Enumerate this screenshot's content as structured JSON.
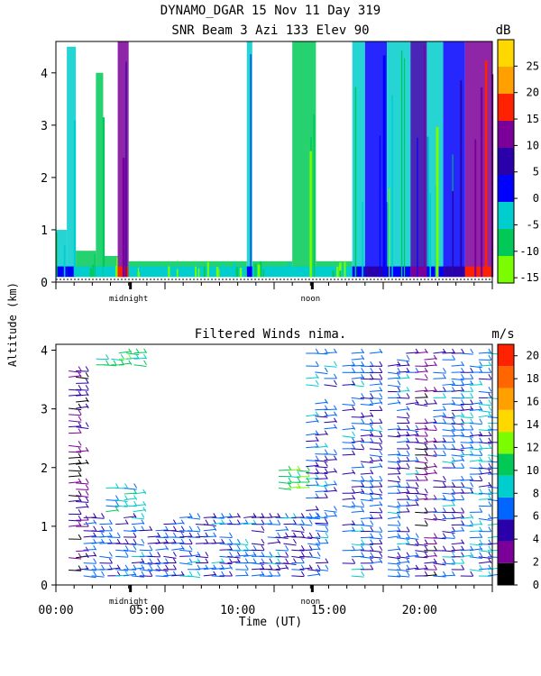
{
  "title_line1": "DYNAMO_DGAR  15 Nov 11 Day 319",
  "title_line2": "SNR Beam 3 Azi 133 Elev 90",
  "ylabel": "Altitude (km)",
  "xlabel": "Time (UT)",
  "chart_data": [
    {
      "type": "heatmap",
      "title": "SNR Beam 3 Azi 133 Elev 90",
      "ylim": [
        0,
        4.6
      ],
      "xlim": [
        0,
        24
      ],
      "yticks": [
        0,
        1,
        2,
        3,
        4
      ],
      "colorbar": {
        "unit": "dB",
        "ticks": [
          -15,
          -10,
          -5,
          0,
          5,
          10,
          15,
          20,
          25
        ],
        "range": [
          -16,
          30
        ],
        "colors": [
          "#7CFC00",
          "#00C957",
          "#00CDCD",
          "#0000FF",
          "#2A00AA",
          "#7B0099",
          "#FF2200",
          "#FFA000",
          "#FFD800"
        ]
      },
      "x_markers": [
        "midnight",
        "noon"
      ],
      "columns": [
        {
          "x0": 0.0,
          "x1": 0.6,
          "top": 1.0,
          "level": -5
        },
        {
          "x0": 0.6,
          "x1": 1.1,
          "top": 4.5,
          "level": -5
        },
        {
          "x0": 1.1,
          "x1": 2.2,
          "top": 0.6,
          "level": -10
        },
        {
          "x0": 2.2,
          "x1": 2.6,
          "top": 4.0,
          "level": -10
        },
        {
          "x0": 2.6,
          "x1": 3.4,
          "top": 0.5,
          "level": -10
        },
        {
          "x0": 3.4,
          "x1": 4.0,
          "top": 4.6,
          "level": 10
        },
        {
          "x0": 4.0,
          "x1": 10.5,
          "top": 0.4,
          "level": -10
        },
        {
          "x0": 10.5,
          "x1": 10.8,
          "top": 4.6,
          "level": -5
        },
        {
          "x0": 10.8,
          "x1": 13.0,
          "top": 0.4,
          "level": -10
        },
        {
          "x0": 13.0,
          "x1": 14.3,
          "top": 4.6,
          "level": -10
        },
        {
          "x0": 14.3,
          "x1": 16.3,
          "top": 0.4,
          "level": -10
        },
        {
          "x0": 16.3,
          "x1": 17.0,
          "top": 4.6,
          "level": -5
        },
        {
          "x0": 17.0,
          "x1": 18.2,
          "top": 4.6,
          "level": 0
        },
        {
          "x0": 18.2,
          "x1": 19.5,
          "top": 4.6,
          "level": -5
        },
        {
          "x0": 19.5,
          "x1": 20.4,
          "top": 4.6,
          "level": 5
        },
        {
          "x0": 20.4,
          "x1": 21.3,
          "top": 4.6,
          "level": -5
        },
        {
          "x0": 21.3,
          "x1": 22.5,
          "top": 4.6,
          "level": 0
        },
        {
          "x0": 22.5,
          "x1": 24.0,
          "top": 4.6,
          "level": 10
        }
      ]
    },
    {
      "type": "scatter",
      "title": "Filtered Winds nima.",
      "ylim": [
        0,
        4.1
      ],
      "xlim": [
        0,
        24
      ],
      "yticks": [
        0,
        1,
        2,
        3,
        4
      ],
      "xticks": [
        {
          "x": 0,
          "label": "00:00"
        },
        {
          "x": 5,
          "label": "05:00"
        },
        {
          "x": 10,
          "label": "10:00"
        },
        {
          "x": 15,
          "label": "15:00"
        },
        {
          "x": 20,
          "label": "20:00"
        }
      ],
      "colorbar": {
        "unit": "m/s",
        "ticks": [
          0,
          2,
          4,
          6,
          8,
          10,
          12,
          14,
          16,
          18,
          20
        ],
        "range": [
          0,
          21
        ],
        "colors": [
          "#000000",
          "#7B0099",
          "#2A00AA",
          "#0066FF",
          "#00CDCD",
          "#00C957",
          "#7CFC00",
          "#FFD800",
          "#FFA000",
          "#FF6600",
          "#FF2200"
        ]
      },
      "x_markers": [
        "midnight",
        "noon"
      ],
      "speed_regions": [
        {
          "x0": 0.5,
          "x1": 1.3,
          "y0": 0.2,
          "y1": 3.7,
          "speed": 3
        },
        {
          "x0": 1.3,
          "x1": 14.5,
          "y0": 0.1,
          "y1": 1.2,
          "speed": 6
        },
        {
          "x0": 2.0,
          "x1": 4.5,
          "y0": 3.7,
          "y1": 4.0,
          "speed": 10
        },
        {
          "x0": 2.5,
          "x1": 4.5,
          "y0": 1.2,
          "y1": 1.7,
          "speed": 8
        },
        {
          "x0": 12.0,
          "x1": 13.5,
          "y0": 1.6,
          "y1": 2.0,
          "speed": 11
        },
        {
          "x0": 13.5,
          "x1": 15.0,
          "y0": 1.0,
          "y1": 4.0,
          "speed": 6
        },
        {
          "x0": 15.5,
          "x1": 17.5,
          "y0": 0.1,
          "y1": 4.0,
          "speed": 6
        },
        {
          "x0": 18.0,
          "x1": 19.5,
          "y0": 0.1,
          "y1": 4.0,
          "speed": 6
        },
        {
          "x0": 19.5,
          "x1": 20.5,
          "y0": 0.1,
          "y1": 4.0,
          "speed": 3
        },
        {
          "x0": 20.5,
          "x1": 22.0,
          "y0": 0.1,
          "y1": 4.0,
          "speed": 6
        },
        {
          "x0": 22.0,
          "x1": 24.0,
          "y0": 0.1,
          "y1": 4.0,
          "speed": 7
        }
      ]
    }
  ]
}
